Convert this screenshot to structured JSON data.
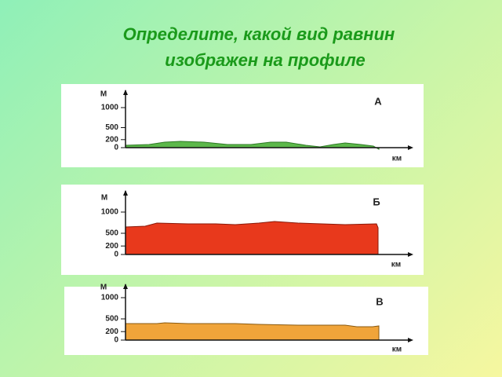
{
  "header": {
    "title": [
      "Определите, какой вид равнин",
      "изображен на профиле"
    ]
  },
  "panels": [
    {
      "label": "А",
      "y_unit": "М",
      "x_unit": "км",
      "yticks": [
        1000,
        500,
        200,
        0
      ]
    },
    {
      "label": "Б",
      "y_unit": "М",
      "x_unit": "км",
      "yticks": [
        1000,
        500,
        200,
        0
      ]
    },
    {
      "label": "В",
      "y_unit": "М",
      "x_unit": "км",
      "yticks": [
        1000,
        500,
        200,
        0
      ]
    }
  ]
}
